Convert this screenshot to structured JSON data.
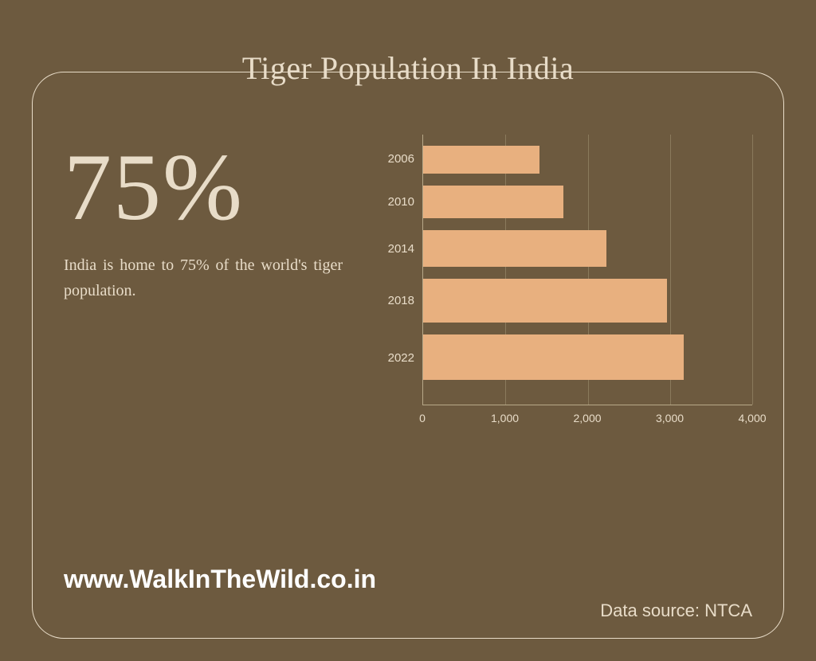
{
  "title": "Tiger Population In India",
  "stat": {
    "number": "75%",
    "text": "India is home to 75% of the world's tiger population."
  },
  "chart": {
    "type": "bar",
    "orientation": "horizontal",
    "categories": [
      "2006",
      "2010",
      "2014",
      "2018",
      "2022"
    ],
    "values": [
      1411,
      1706,
      2226,
      2967,
      3167
    ],
    "bar_color": "#e8b07f",
    "xlim": [
      0,
      4000
    ],
    "xtick_step": 1000,
    "xtick_labels": [
      "0",
      "1,000",
      "2,000",
      "3,000",
      "4,000"
    ],
    "bar_heights_pct": [
      10.5,
      12.0,
      13.5,
      16.0,
      17.0
    ],
    "bar_gap_pct": 4.5,
    "bar_top_offset_pct": 4.0,
    "label_fontsize": 15,
    "xlabel_fontsize": 14,
    "grid_color": "#8a7a5c",
    "axis_color": "#b8a888",
    "label_color": "#e8dcc8"
  },
  "website": "www.WalkInTheWild.co.in",
  "data_source": "Data source: NTCA",
  "colors": {
    "background": "#6d5a3f",
    "frame_border": "#e8dcc8",
    "title_text": "#e8dcc8",
    "body_text": "#e8dcc8",
    "website_text": "#ffffff"
  },
  "typography": {
    "title_fontsize": 40,
    "stat_number_fontsize": 120,
    "stat_text_fontsize": 20,
    "website_fontsize": 32,
    "data_source_fontsize": 22
  }
}
